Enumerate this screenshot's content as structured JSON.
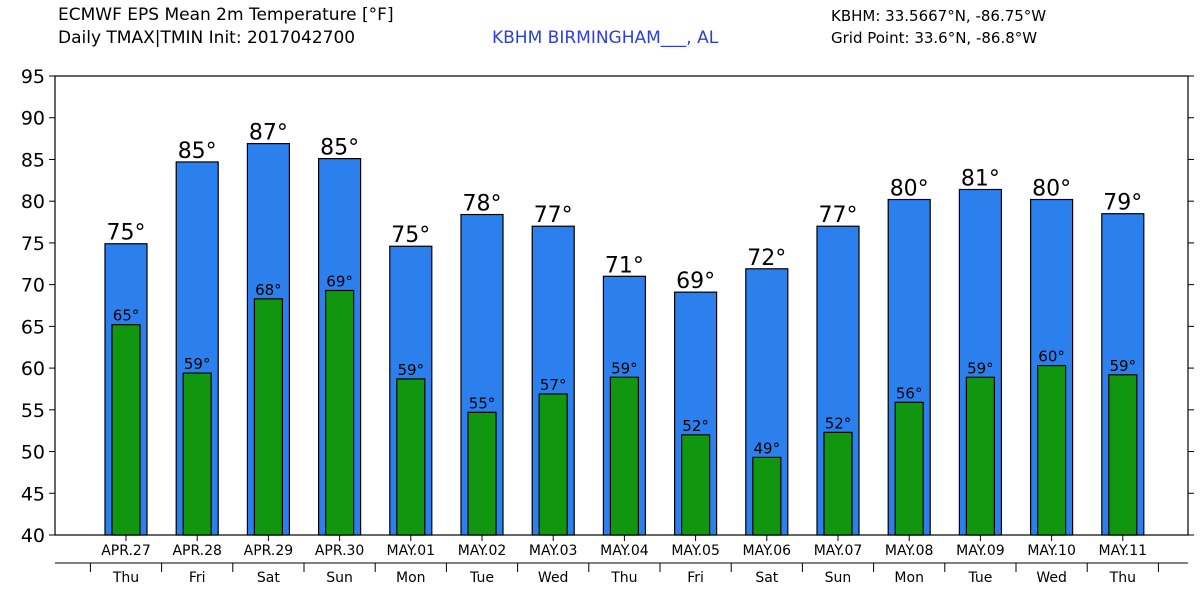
{
  "header": {
    "title_line1": "ECMWF EPS Mean 2m Temperature [°F]",
    "title_line2": "Daily TMAX|TMIN Init: 2017042700",
    "station": "KBHM BIRMINGHAM___, AL",
    "coord_line1": "KBHM: 33.5667°N, -86.75°W",
    "coord_line2": "Grid Point: 33.6°N, -86.8°W"
  },
  "colors": {
    "tmax": "#2b80ee",
    "tmin": "#11970f"
  },
  "chart_data": {
    "type": "bar",
    "title": "ECMWF EPS Mean 2m Temperature [°F]",
    "xlabel": "",
    "ylabel": "",
    "ylim": [
      40,
      95
    ],
    "yticks": [
      40,
      45,
      50,
      55,
      60,
      65,
      70,
      75,
      80,
      85,
      90,
      95
    ],
    "grid": false,
    "categories": [
      "APR.27",
      "APR.28",
      "APR.29",
      "APR.30",
      "MAY.01",
      "MAY.02",
      "MAY.03",
      "MAY.04",
      "MAY.05",
      "MAY.06",
      "MAY.07",
      "MAY.08",
      "MAY.09",
      "MAY.10",
      "MAY.11"
    ],
    "weekdays": [
      "Thu",
      "Fri",
      "Sat",
      "Sun",
      "Mon",
      "Tue",
      "Wed",
      "Thu",
      "Fri",
      "Sat",
      "Sun",
      "Mon",
      "Tue",
      "Wed",
      "Thu"
    ],
    "series": [
      {
        "key": "tmax",
        "values": [
          74.9,
          84.7,
          86.9,
          85.1,
          74.6,
          78.4,
          77.0,
          71.0,
          69.1,
          71.9,
          77.0,
          80.2,
          81.4,
          80.2,
          78.5
        ],
        "labels": [
          "75°",
          "85°",
          "87°",
          "85°",
          "75°",
          "78°",
          "77°",
          "71°",
          "69°",
          "72°",
          "77°",
          "80°",
          "81°",
          "80°",
          "79°"
        ]
      },
      {
        "key": "tmin",
        "values": [
          65.2,
          59.4,
          68.3,
          69.3,
          58.7,
          54.7,
          56.9,
          58.9,
          52.0,
          49.3,
          52.3,
          55.9,
          58.9,
          60.3,
          59.2
        ],
        "labels": [
          "65°",
          "59°",
          "68°",
          "69°",
          "59°",
          "55°",
          "57°",
          "59°",
          "52°",
          "49°",
          "52°",
          "56°",
          "59°",
          "60°",
          "59°"
        ]
      }
    ]
  }
}
